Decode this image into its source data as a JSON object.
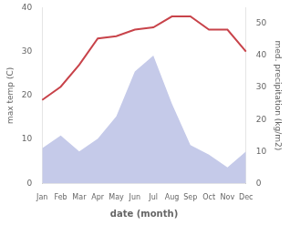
{
  "chart_data": {
    "type": "line",
    "xlabel": "date (month)",
    "ylabel": "max temp (C)",
    "y2label": "med. precipitation (kg/m2)",
    "categories": [
      "Jan",
      "Feb",
      "Mar",
      "Apr",
      "May",
      "Jun",
      "Jul",
      "Aug",
      "Sep",
      "Oct",
      "Nov",
      "Dec"
    ],
    "series": [
      {
        "type": "area",
        "axis": "y2",
        "color": "#c5cae9",
        "values": [
          11,
          15,
          10,
          14,
          21,
          35,
          40,
          25,
          12,
          9,
          5,
          10
        ]
      },
      {
        "type": "line",
        "color": "#c8434a",
        "values": [
          19,
          22,
          27,
          33,
          33.5,
          35,
          35.5,
          38,
          38,
          35,
          35,
          30
        ]
      }
    ],
    "ylim": [
      0,
      40
    ],
    "yticks": [
      0,
      10,
      20,
      30,
      40
    ],
    "y2lim": [
      0,
      55
    ],
    "y2ticks": [
      0,
      10,
      20,
      30,
      40,
      50
    ],
    "grid": false
  }
}
